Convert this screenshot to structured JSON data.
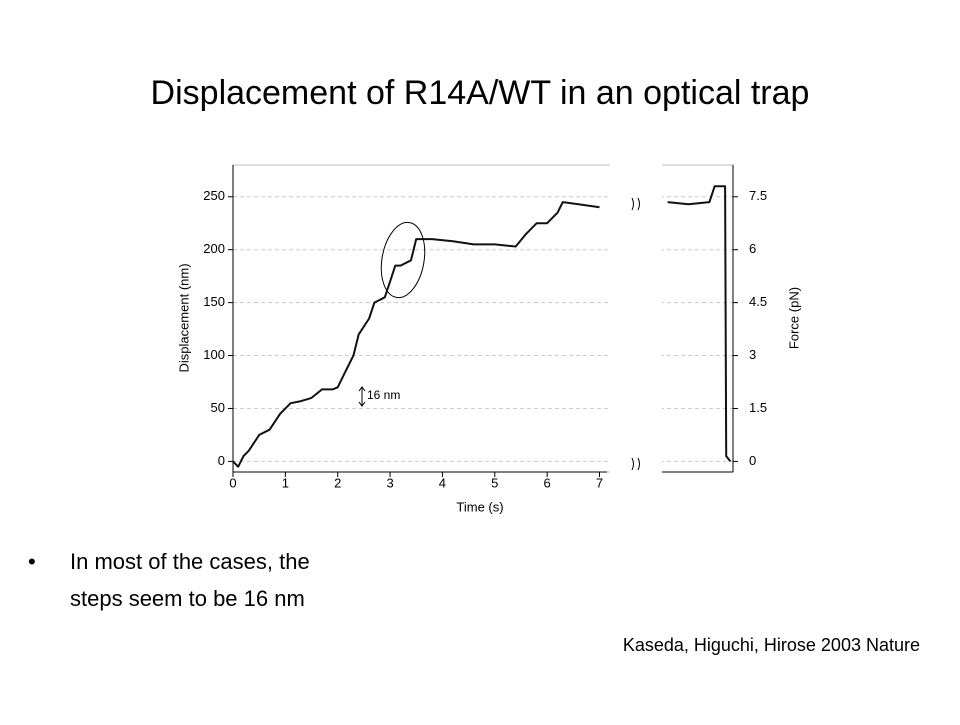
{
  "slide": {
    "title": "Displacement of R14A/WT in an optical trap",
    "bullet_lines": [
      "In most of the cases, the",
      "steps seem to be 16 nm"
    ],
    "citation": "Kaseda, Higuchi, Hirose 2003 Nature"
  },
  "chart_data": {
    "type": "line",
    "color": "#111111",
    "x_label": "Time (s)",
    "y_label": "Displacement (nm)",
    "y2_label": "Force (pN)",
    "annotation": "16 nm",
    "x": [
      0,
      0.1,
      0.2,
      0.3,
      0.5,
      0.7,
      0.9,
      1.1,
      1.3,
      1.5,
      1.7,
      1.9,
      2.0,
      2.1,
      2.3,
      2.4,
      2.6,
      2.7,
      2.9,
      3.0,
      3.1,
      3.2,
      3.4,
      3.5,
      3.8,
      4.2,
      4.6,
      5.0,
      5.4,
      5.6,
      5.8,
      6.0,
      6.2,
      6.3,
      6.6,
      7.0,
      7.5,
      8.3,
      8.7,
      9.1,
      9.2,
      9.4,
      9.42,
      9.5
    ],
    "values": [
      0,
      -5,
      5,
      10,
      25,
      30,
      45,
      55,
      57,
      60,
      68,
      68,
      70,
      80,
      100,
      120,
      135,
      150,
      155,
      170,
      185,
      185,
      190,
      210,
      210,
      208,
      205,
      205,
      203,
      215,
      225,
      225,
      235,
      245,
      243,
      240,
      null,
      245,
      243,
      245,
      260,
      260,
      5,
      0
    ],
    "xlim": [
      0,
      9.55
    ],
    "xticks": [
      0,
      1,
      2,
      3,
      4,
      5,
      6,
      7
    ],
    "ylim": [
      -10,
      280
    ],
    "yticks": [
      0,
      50,
      100,
      150,
      200,
      250
    ],
    "y2lim": [
      -0.3,
      8.4
    ],
    "y2ticks": [
      0,
      1.5,
      3.0,
      4.5,
      6.0,
      7.5
    ],
    "grid": true
  }
}
